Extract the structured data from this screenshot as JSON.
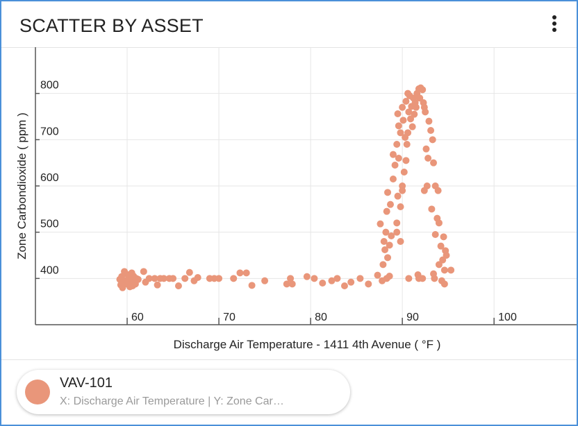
{
  "header": {
    "title": "SCATTER BY ASSET",
    "menu_icon": "more-vertical-icon"
  },
  "colors": {
    "point": "#e9967a",
    "grid": "#e6e6e6",
    "axis": "#555555",
    "frame": "#4a90d9"
  },
  "legend": {
    "name": "VAV-101",
    "subtitle": "X: Discharge Air Temperature | Y: Zone Car…"
  },
  "chart_data": {
    "type": "scatter",
    "title": "",
    "xlabel": "Discharge Air Temperature - 1411 4th Avenue ( °F )",
    "ylabel": "Zone Carbondioxide ( ppm )",
    "xlim": [
      50,
      109
    ],
    "ylim": [
      300,
      900
    ],
    "xticks": [
      60,
      70,
      80,
      90,
      100
    ],
    "yticks": [
      400,
      500,
      600,
      700,
      800
    ],
    "grid": true,
    "series": [
      {
        "name": "VAV-101",
        "points": [
          [
            59.2,
            398
          ],
          [
            59.4,
            404
          ],
          [
            59.6,
            392
          ],
          [
            59.8,
            410
          ],
          [
            60,
            388
          ],
          [
            60.2,
            402
          ],
          [
            60.4,
            396
          ],
          [
            60.6,
            384
          ],
          [
            59.3,
            386
          ],
          [
            59.7,
            415
          ],
          [
            60.1,
            408
          ],
          [
            60.5,
            412
          ],
          [
            60.8,
            393
          ],
          [
            61,
            400
          ],
          [
            59.5,
            380
          ],
          [
            60.3,
            382
          ],
          [
            61.2,
            398
          ],
          [
            59.9,
            395
          ],
          [
            60.7,
            405
          ],
          [
            60.9,
            388
          ],
          [
            61.8,
            415
          ],
          [
            62,
            392
          ],
          [
            62.4,
            400
          ],
          [
            63,
            400
          ],
          [
            63.3,
            386
          ],
          [
            63.6,
            400
          ],
          [
            64,
            400
          ],
          [
            64.6,
            400
          ],
          [
            65,
            400
          ],
          [
            65.6,
            384
          ],
          [
            66.3,
            400
          ],
          [
            66.8,
            413
          ],
          [
            67.3,
            395
          ],
          [
            67.7,
            402
          ],
          [
            69,
            400
          ],
          [
            69.5,
            400
          ],
          [
            70,
            400
          ],
          [
            71.6,
            400
          ],
          [
            72.3,
            412
          ],
          [
            73,
            412
          ],
          [
            73.6,
            385
          ],
          [
            75,
            395
          ],
          [
            77.4,
            388
          ],
          [
            77.8,
            400
          ],
          [
            78,
            388
          ],
          [
            79.6,
            404
          ],
          [
            80.4,
            400
          ],
          [
            81.3,
            390
          ],
          [
            82.3,
            395
          ],
          [
            82.9,
            400
          ],
          [
            83.7,
            384
          ],
          [
            84.4,
            392
          ],
          [
            85.4,
            400
          ],
          [
            86.3,
            388
          ],
          [
            87.3,
            407
          ],
          [
            87.8,
            395
          ],
          [
            88.3,
            400
          ],
          [
            88.6,
            405
          ],
          [
            87.9,
            430
          ],
          [
            88.4,
            445
          ],
          [
            88.1,
            462
          ],
          [
            88.6,
            472
          ],
          [
            88.0,
            480
          ],
          [
            87.6,
            518
          ],
          [
            88.2,
            500
          ],
          [
            88.8,
            492
          ],
          [
            89.4,
            500
          ],
          [
            89.8,
            480
          ],
          [
            88.3,
            545
          ],
          [
            88.7,
            560
          ],
          [
            88.4,
            586
          ],
          [
            89.4,
            520
          ],
          [
            89.8,
            555
          ],
          [
            90.0,
            590
          ],
          [
            89.5,
            578
          ],
          [
            89.0,
            615
          ],
          [
            89.2,
            645
          ],
          [
            89.6,
            660
          ],
          [
            89.0,
            668
          ],
          [
            89.4,
            690
          ],
          [
            89.8,
            715
          ],
          [
            90.2,
            630
          ],
          [
            90.0,
            600
          ],
          [
            90.4,
            655
          ],
          [
            90.5,
            690
          ],
          [
            89.6,
            730
          ],
          [
            90.1,
            742
          ],
          [
            89.5,
            756
          ],
          [
            90.0,
            770
          ],
          [
            90.4,
            783
          ],
          [
            90.6,
            800
          ],
          [
            90.8,
            795
          ],
          [
            91.0,
            772
          ],
          [
            90.7,
            760
          ],
          [
            91.2,
            790
          ],
          [
            91.4,
            780
          ],
          [
            91.6,
            800
          ],
          [
            91.8,
            810
          ],
          [
            92.0,
            812
          ],
          [
            92.2,
            808
          ],
          [
            91.9,
            790
          ],
          [
            92.3,
            780
          ],
          [
            91.5,
            770
          ],
          [
            90.9,
            745
          ],
          [
            92.4,
            770
          ],
          [
            91.1,
            728
          ],
          [
            90.6,
            715
          ],
          [
            90.3,
            705
          ],
          [
            91.3,
            755
          ],
          [
            92.5,
            760
          ],
          [
            92.9,
            740
          ],
          [
            93.1,
            720
          ],
          [
            93.3,
            700
          ],
          [
            92.6,
            680
          ],
          [
            92.8,
            660
          ],
          [
            93.4,
            650
          ],
          [
            92.4,
            590
          ],
          [
            92.7,
            600
          ],
          [
            93.6,
            600
          ],
          [
            93.9,
            590
          ],
          [
            93.2,
            550
          ],
          [
            93.8,
            530
          ],
          [
            94.0,
            520
          ],
          [
            93.6,
            495
          ],
          [
            94.2,
            470
          ],
          [
            94.5,
            490
          ],
          [
            94.7,
            460
          ],
          [
            94.8,
            450
          ],
          [
            94.4,
            440
          ],
          [
            94.0,
            430
          ],
          [
            94.6,
            418
          ],
          [
            95.3,
            418
          ],
          [
            93.4,
            410
          ],
          [
            94.3,
            395
          ],
          [
            94.6,
            388
          ],
          [
            92.2,
            400
          ],
          [
            91.7,
            408
          ],
          [
            90.7,
            400
          ],
          [
            93.5,
            400
          ],
          [
            91.8,
            400
          ]
        ]
      }
    ]
  }
}
